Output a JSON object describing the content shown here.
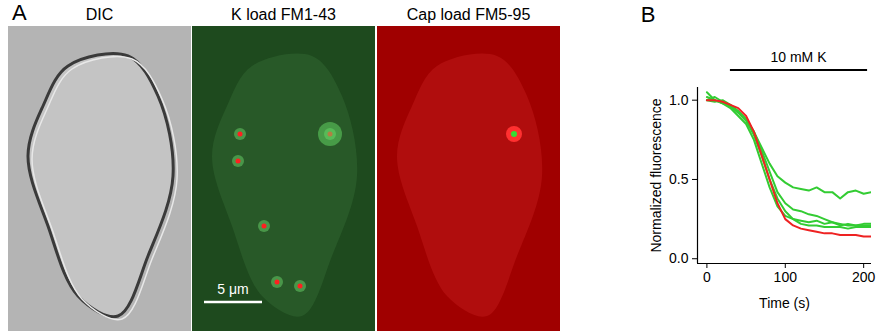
{
  "panel_a": {
    "label": "A",
    "panels": [
      {
        "title": "DIC"
      },
      {
        "title": "K load FM1-43"
      },
      {
        "title": "Cap load FM5-95"
      }
    ],
    "scale_bar": "5 μm"
  },
  "chart_data": {
    "type": "line",
    "title": "B",
    "x_label": "Time (s)",
    "y_label": "Normalized fluorescence",
    "x": [
      0,
      10,
      20,
      30,
      40,
      50,
      60,
      70,
      80,
      90,
      100,
      110,
      120,
      130,
      140,
      150,
      160,
      170,
      180,
      190,
      200,
      210
    ],
    "series": [
      {
        "color": "#33cc33",
        "values": [
          1.05,
          1.0,
          0.98,
          0.97,
          0.93,
          0.88,
          0.8,
          0.7,
          0.6,
          0.52,
          0.48,
          0.45,
          0.44,
          0.43,
          0.45,
          0.42,
          0.42,
          0.38,
          0.42,
          0.43,
          0.41,
          0.42
        ]
      },
      {
        "color": "#33cc33",
        "values": [
          1.02,
          1.0,
          0.98,
          0.95,
          0.9,
          0.85,
          0.75,
          0.6,
          0.45,
          0.33,
          0.27,
          0.25,
          0.24,
          0.23,
          0.24,
          0.22,
          0.23,
          0.21,
          0.22,
          0.21,
          0.22,
          0.22
        ]
      },
      {
        "color": "#33cc33",
        "values": [
          1.0,
          1.02,
          0.99,
          0.96,
          0.92,
          0.87,
          0.78,
          0.65,
          0.5,
          0.38,
          0.3,
          0.25,
          0.22,
          0.21,
          0.21,
          0.2,
          0.2,
          0.2,
          0.19,
          0.2,
          0.2,
          0.2
        ]
      },
      {
        "color": "#33cc33",
        "values": [
          1.0,
          0.99,
          1.0,
          0.97,
          0.93,
          0.88,
          0.8,
          0.68,
          0.55,
          0.42,
          0.35,
          0.31,
          0.3,
          0.28,
          0.27,
          0.25,
          0.23,
          0.22,
          0.21,
          0.21,
          0.21,
          0.21
        ]
      },
      {
        "color": "#ee2222",
        "values": [
          1.0,
          1.0,
          0.99,
          0.97,
          0.95,
          0.9,
          0.8,
          0.65,
          0.5,
          0.35,
          0.25,
          0.21,
          0.19,
          0.18,
          0.17,
          0.16,
          0.16,
          0.15,
          0.15,
          0.15,
          0.14,
          0.14
        ]
      }
    ],
    "xlim": [
      -12,
      210
    ],
    "xticks": [
      0,
      100,
      200
    ],
    "ylim": [
      -0.03,
      1.08
    ],
    "yticks": [
      {
        "value": 0,
        "label": "0.0"
      },
      {
        "value": 0.5,
        "label": "0.5"
      },
      {
        "value": 1,
        "label": "1.0"
      }
    ],
    "annotations": [
      {
        "text": "10 mM K",
        "x": [
          30,
          205
        ]
      }
    ]
  }
}
